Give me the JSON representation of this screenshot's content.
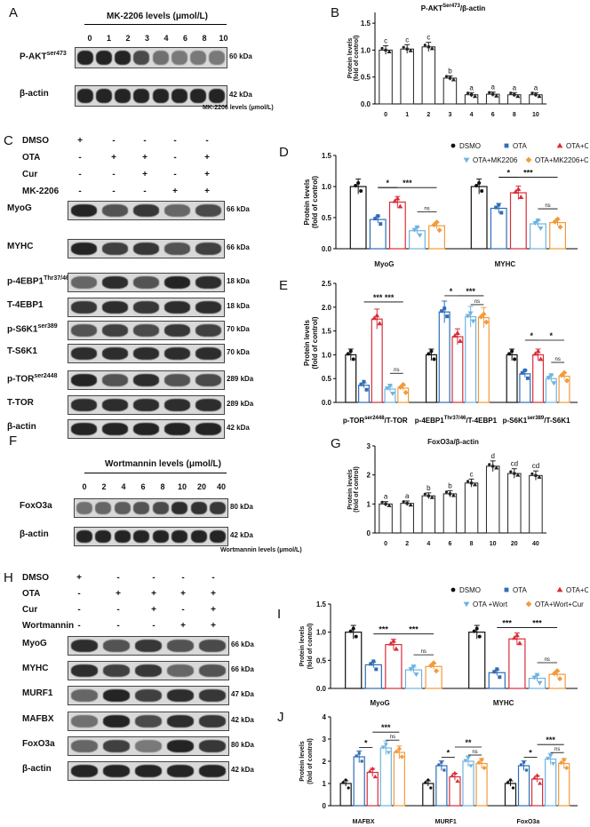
{
  "panels": {
    "A": "A",
    "B": "B",
    "C": "C",
    "D": "D",
    "E": "E",
    "F": "F",
    "G": "G",
    "H": "H",
    "I": "I",
    "J": "J"
  },
  "A": {
    "title": "MK-2206 levels (μmol/L)",
    "doses": [
      "0",
      "1",
      "2",
      "3",
      "4",
      "6",
      "8",
      "10"
    ],
    "rows": [
      {
        "label": "P-AKT",
        "sup": "ser473",
        "kda": "60 kDa"
      },
      {
        "label": "β-actin",
        "sup": "",
        "kda": "42 kDa"
      }
    ]
  },
  "B": {
    "title_main": "P-AKT",
    "title_sup": "Ser473",
    "title_rest": "/β-actin",
    "ylabel1": "Protein levels",
    "ylabel2": "(fold of control)",
    "xlabel": "MK-2206 levels (μmol/L)",
    "yticks": [
      "0.0",
      "0.5",
      "1.0",
      "1.5"
    ]
  },
  "C": {
    "treat_labels": [
      "DMSO",
      "OTA",
      "Cur",
      "MK-2206"
    ],
    "signs": [
      [
        "+",
        "-",
        "-",
        "-",
        "-"
      ],
      [
        "-",
        "+",
        "+",
        "-",
        "+"
      ],
      [
        "-",
        "-",
        "+",
        "-",
        "+"
      ],
      [
        "-",
        "-",
        "-",
        "+",
        "+"
      ]
    ],
    "rows": [
      {
        "label": "MyoG",
        "sup": "",
        "kda": "66 kDa"
      },
      {
        "label": "MYHC",
        "sup": "",
        "kda": "66 kDa"
      },
      {
        "label": "p-4EBP1",
        "sup": "Thr37/46",
        "kda": "18 kDa"
      },
      {
        "label": "T-4EBP1",
        "sup": "",
        "kda": "18 kDa"
      },
      {
        "label": "p-S6K1",
        "sup": "ser389",
        "kda": "70 kDa"
      },
      {
        "label": "T-S6K1",
        "sup": "",
        "kda": "70 kDa"
      },
      {
        "label": "p-TOR",
        "sup": "ser2448",
        "kda": "289 kDa"
      },
      {
        "label": "T-TOR",
        "sup": "",
        "kda": "289 kDa"
      },
      {
        "label": "β-actin",
        "sup": "",
        "kda": "42 kDa"
      }
    ]
  },
  "legend_DE": [
    "DSMO",
    "OTA",
    "OTA+Cur",
    "OTA+MK2206",
    "OTA+MK2206+Cur"
  ],
  "D": {
    "ylabel1": "Protein levels",
    "ylabel2": "(fold of control)",
    "yticks": [
      "0.0",
      "0.5",
      "1.0",
      "1.5"
    ],
    "groups": [
      "MyoG",
      "MYHC"
    ],
    "sig": [
      "*",
      "***",
      "ns",
      "*",
      "***",
      "ns"
    ]
  },
  "E": {
    "ylabel1": "Protein levels",
    "ylabel2": "(fold of control)",
    "yticks": [
      "0.0",
      "0.5",
      "1.0",
      "1.5",
      "2.0",
      "2.5"
    ],
    "groups": [
      {
        "main": "p-TOR",
        "sup": "ser2448",
        "rest": "/T-TOR"
      },
      {
        "main": "p-4EBP1",
        "sup": "Thr37/46",
        "rest": "/T-4EBP1"
      },
      {
        "main": "p-S6K1",
        "sup": "ser389",
        "rest": "/T-S6K1"
      }
    ],
    "sig": [
      "*** ***",
      "ns",
      "*",
      "***",
      "ns",
      "*",
      "*",
      "ns"
    ]
  },
  "F": {
    "title": "Wortmannin levels (μmol/L)",
    "doses": [
      "0",
      "2",
      "4",
      "6",
      "8",
      "10",
      "20",
      "40"
    ],
    "rows": [
      {
        "label": "FoxO3a",
        "sup": "",
        "kda": "80 kDa"
      },
      {
        "label": "β-actin",
        "sup": "",
        "kda": "42 kDa"
      }
    ]
  },
  "G": {
    "title": "FoxO3a/β-actin",
    "ylabel1": "Protein levels",
    "ylabel2": "(fold of control)",
    "xlabel": "Wortmannin levels (μmol/L)",
    "yticks": [
      "0",
      "1",
      "2",
      "3"
    ]
  },
  "H": {
    "treat_labels": [
      "DMSO",
      "OTA",
      "Cur",
      "Wortmannin"
    ],
    "signs": [
      [
        "+",
        "-",
        "-",
        "-",
        "-"
      ],
      [
        "-",
        "+",
        "+",
        "+",
        "+"
      ],
      [
        "-",
        "-",
        "+",
        "-",
        "+"
      ],
      [
        "-",
        "-",
        "-",
        "+",
        "+"
      ]
    ],
    "rows": [
      {
        "label": "MyoG",
        "sup": "",
        "kda": "66 kDa"
      },
      {
        "label": "MYHC",
        "sup": "",
        "kda": "66 kDa"
      },
      {
        "label": "MURF1",
        "sup": "",
        "kda": "47 kDa"
      },
      {
        "label": "MAFBX",
        "sup": "",
        "kda": "42 kDa"
      },
      {
        "label": "FoxO3a",
        "sup": "",
        "kda": "80 kDa"
      },
      {
        "label": "β-actin",
        "sup": "",
        "kda": "42 kDa"
      }
    ]
  },
  "legend_IJ": [
    "DSMO",
    "OTA",
    "OTA+Cur",
    "OTA +Wort",
    "OTA+Wort+Cur"
  ],
  "I": {
    "ylabel1": "Protein levels",
    "ylabel2": "(fold of control)",
    "yticks": [
      "0.0",
      "0.5",
      "1.0",
      "1.5"
    ],
    "groups": [
      "MyoG",
      "MYHC"
    ],
    "sig": [
      "***",
      "***",
      "ns",
      "***",
      "***",
      "ns"
    ]
  },
  "J": {
    "ylabel1": "Protein levels",
    "ylabel2": "(fold of control)",
    "yticks": [
      "0",
      "1",
      "2",
      "3",
      "4"
    ],
    "groups": [
      "MAFBX",
      "MURF1",
      "FoxO3a"
    ],
    "sig": [
      "*",
      "***",
      "ns",
      "*",
      "**",
      "ns",
      "*",
      "***",
      "ns"
    ]
  },
  "colors": {
    "c1": "#111111",
    "c2": "#2f6db5",
    "c3": "#d92d3a",
    "c4": "#6fb3e0",
    "c5": "#f29a3a"
  },
  "chart_data": [
    {
      "type": "bar",
      "id": "B",
      "categories": [
        "0",
        "1",
        "2",
        "3",
        "4",
        "6",
        "8",
        "10"
      ],
      "series": [
        {
          "values": [
            1.0,
            1.02,
            1.06,
            0.48,
            0.17,
            0.18,
            0.17,
            0.17
          ]
        }
      ],
      "letters": [
        "c",
        "c",
        "c",
        "b",
        "a",
        "a",
        "a",
        "a"
      ],
      "ylim": [
        0,
        1.7
      ]
    },
    {
      "type": "bar",
      "id": "D",
      "categories": [
        "MyoG",
        "MYHC"
      ],
      "series": [
        {
          "name": "DSMO",
          "values": [
            1.0,
            1.0
          ]
        },
        {
          "name": "OTA",
          "values": [
            0.47,
            0.65
          ]
        },
        {
          "name": "OTA+Cur",
          "values": [
            0.75,
            0.9
          ]
        },
        {
          "name": "OTA+MK2206",
          "values": [
            0.29,
            0.4
          ]
        },
        {
          "name": "OTA+MK2206+Cur",
          "values": [
            0.37,
            0.42
          ]
        }
      ],
      "ylim": [
        0,
        1.5
      ]
    },
    {
      "type": "bar",
      "id": "E",
      "categories": [
        "p-TOR/T-TOR",
        "p-4EBP1/T-4EBP1",
        "p-S6K1/T-S6K1"
      ],
      "series": [
        {
          "name": "DSMO",
          "values": [
            1.0,
            1.0,
            1.0
          ]
        },
        {
          "name": "OTA",
          "values": [
            0.36,
            1.9,
            0.6
          ]
        },
        {
          "name": "OTA+Cur",
          "values": [
            1.75,
            1.38,
            1.0
          ]
        },
        {
          "name": "OTA+MK2206",
          "values": [
            0.28,
            1.8,
            0.5
          ]
        },
        {
          "name": "OTA+MK2206+Cur",
          "values": [
            0.3,
            1.78,
            0.55
          ]
        }
      ],
      "ylim": [
        0,
        2.5
      ]
    },
    {
      "type": "bar",
      "id": "G",
      "categories": [
        "0",
        "2",
        "4",
        "6",
        "8",
        "10",
        "20",
        "40"
      ],
      "series": [
        {
          "values": [
            1.0,
            1.02,
            1.28,
            1.35,
            1.72,
            2.3,
            2.05,
            1.98
          ]
        }
      ],
      "letters": [
        "a",
        "a",
        "b",
        "b",
        "c",
        "d",
        "cd",
        "cd"
      ],
      "ylim": [
        0,
        3
      ]
    },
    {
      "type": "bar",
      "id": "I",
      "categories": [
        "MyoG",
        "MYHC"
      ],
      "series": [
        {
          "name": "DSMO",
          "values": [
            1.0,
            1.0
          ]
        },
        {
          "name": "OTA",
          "values": [
            0.42,
            0.28
          ]
        },
        {
          "name": "OTA+Cur",
          "values": [
            0.78,
            0.88
          ]
        },
        {
          "name": "OTA +Wort",
          "values": [
            0.33,
            0.18
          ]
        },
        {
          "name": "OTA+Wort+Cur",
          "values": [
            0.39,
            0.25
          ]
        }
      ],
      "ylim": [
        0,
        1.5
      ]
    },
    {
      "type": "bar",
      "id": "J",
      "categories": [
        "MAFBX",
        "MURF1",
        "FoxO3a"
      ],
      "series": [
        {
          "name": "DSMO",
          "values": [
            1.0,
            1.0,
            1.0
          ]
        },
        {
          "name": "OTA",
          "values": [
            2.2,
            1.8,
            1.8
          ]
        },
        {
          "name": "OTA+Cur",
          "values": [
            1.5,
            1.3,
            1.2
          ]
        },
        {
          "name": "OTA +Wort",
          "values": [
            2.6,
            2.0,
            2.1
          ]
        },
        {
          "name": "OTA+Wort+Cur",
          "values": [
            2.4,
            1.9,
            1.9
          ]
        }
      ],
      "ylim": [
        0,
        4
      ]
    }
  ]
}
